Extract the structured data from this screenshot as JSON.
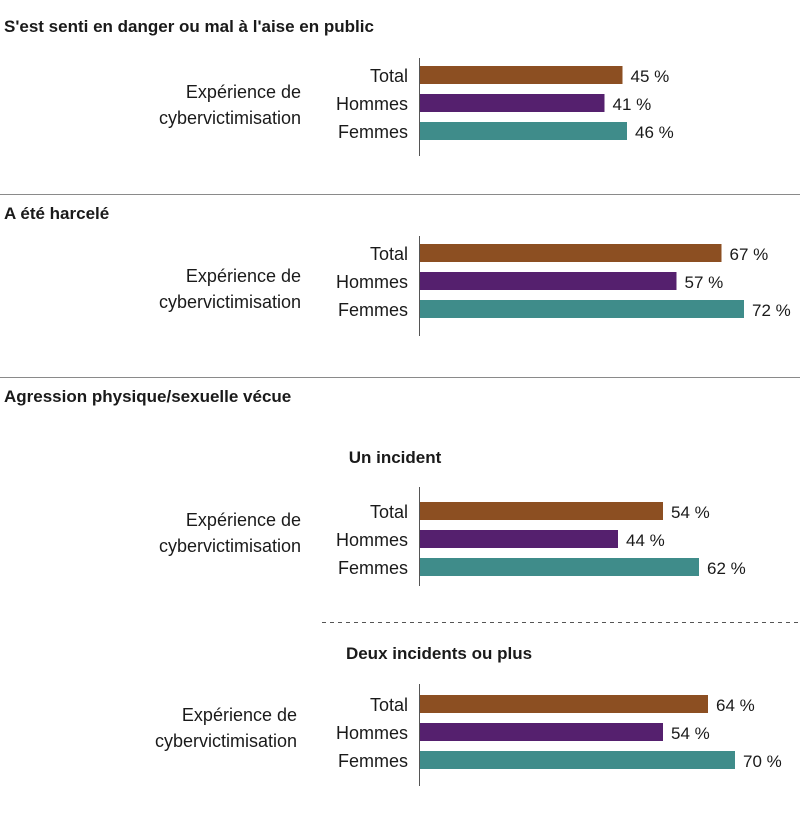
{
  "colors": {
    "total": "#8c4f22",
    "hommes": "#55206e",
    "femmes": "#3f8c8a"
  },
  "labels": {
    "group_line1": "Expérience de",
    "group_line2": "cybervictimisation",
    "unit": "%"
  },
  "sections": [
    {
      "title": "S'est senti en danger ou mal à l'aise en public"
    },
    {
      "title": "A été harcelé"
    },
    {
      "title": "Agression physique/sexuelle vécue"
    }
  ],
  "subsections": [
    {
      "title": "Un incident"
    },
    {
      "title": "Deux incidents ou plus"
    }
  ],
  "chart_data": [
    {
      "type": "bar",
      "orientation": "horizontal",
      "title": "S'est senti en danger ou mal à l'aise en public",
      "group": "Expérience de cybervictimisation",
      "categories": [
        "Total",
        "Hommes",
        "Femmes"
      ],
      "values": [
        45,
        41,
        46
      ],
      "value_labels": [
        "45 %",
        "41 %",
        "46 %"
      ]
    },
    {
      "type": "bar",
      "orientation": "horizontal",
      "title": "A été harcelé",
      "group": "Expérience de cybervictimisation",
      "categories": [
        "Total",
        "Hommes",
        "Femmes"
      ],
      "values": [
        67,
        57,
        72
      ],
      "value_labels": [
        "67 %",
        "57 %",
        "72 %"
      ]
    },
    {
      "type": "bar",
      "orientation": "horizontal",
      "title": "Un incident",
      "group": "Expérience de cybervictimisation",
      "categories": [
        "Total",
        "Hommes",
        "Femmes"
      ],
      "values": [
        54,
        44,
        62
      ],
      "value_labels": [
        "54 %",
        "44 %",
        "62 %"
      ]
    },
    {
      "type": "bar",
      "orientation": "horizontal",
      "title": "Deux incidents ou plus",
      "group": "Expérience de cybervictimisation",
      "categories": [
        "Total",
        "Hommes",
        "Femmes"
      ],
      "values": [
        64,
        54,
        70
      ],
      "value_labels": [
        "64 %",
        "54 %",
        "70 %"
      ]
    }
  ]
}
